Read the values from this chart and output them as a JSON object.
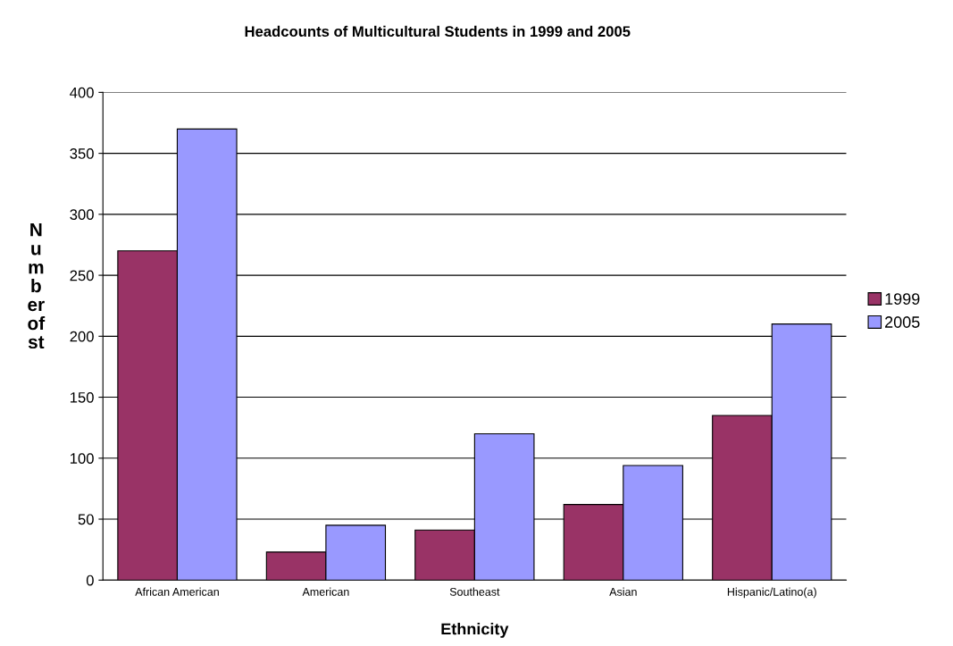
{
  "chart_data": {
    "type": "bar",
    "title": "Headcounts of Multicultural Students in 1999 and 2005",
    "xlabel": "Ethnicity",
    "ylabel": "N\nu\nm\nb\ner\nof\nst",
    "categories": [
      "African American",
      "American",
      "Southeast",
      "Asian",
      "Hispanic/Latino(a)"
    ],
    "series": [
      {
        "name": "1999",
        "color": "#993366",
        "values": [
          270,
          23,
          41,
          62,
          135
        ]
      },
      {
        "name": "2005",
        "color": "#9999ff",
        "values": [
          370,
          45,
          120,
          94,
          210
        ]
      }
    ],
    "ylim": [
      0,
      400
    ],
    "yticks": [
      0,
      50,
      100,
      150,
      200,
      250,
      300,
      350,
      400
    ],
    "grid": "y",
    "legend": "right"
  }
}
